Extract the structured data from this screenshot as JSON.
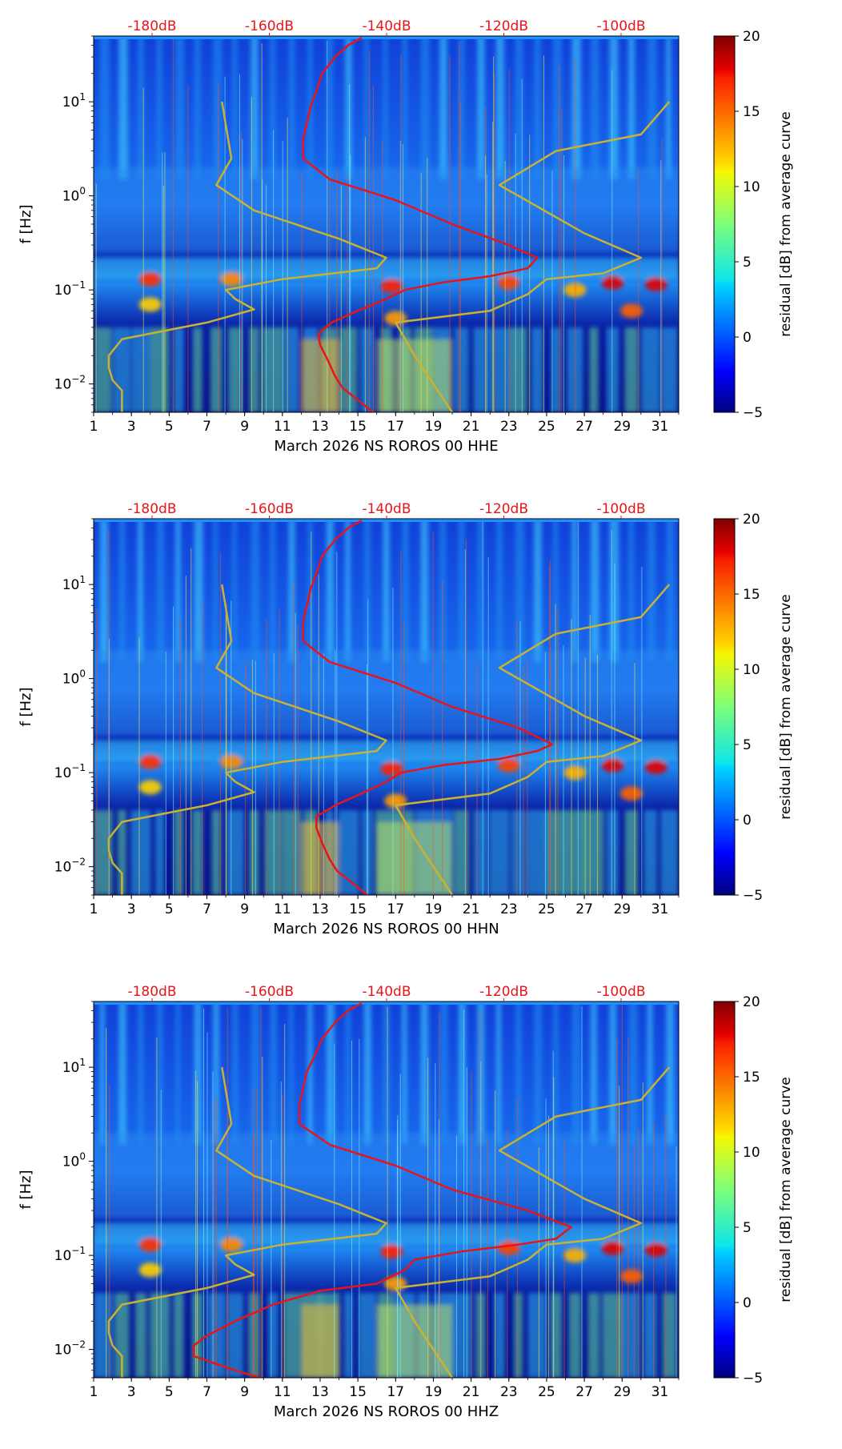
{
  "chart_data": [
    {
      "type": "heatmap",
      "xlabel": "March 2026 NS ROROS 00 HHE",
      "ylabel": "f [Hz]",
      "colorbar_label": "residual [dB] from average curve",
      "x_ticks": [
        "1",
        "3",
        "5",
        "7",
        "9",
        "11",
        "13",
        "15",
        "17",
        "19",
        "21",
        "23",
        "25",
        "27",
        "29",
        "31"
      ],
      "x_range": [
        1,
        32
      ],
      "y_range": [
        0.005,
        50
      ],
      "y_scale": "log",
      "y_ticks": [
        {
          "value": 0.01,
          "base": "10",
          "exp": "−2"
        },
        {
          "value": 0.1,
          "base": "10",
          "exp": "−1"
        },
        {
          "value": 1,
          "base": "10",
          "exp": "0"
        },
        {
          "value": 10,
          "base": "10",
          "exp": "1"
        }
      ],
      "top_ticks": [
        "-180dB",
        "-160dB",
        "-140dB",
        "-120dB",
        "-100dB"
      ],
      "colorbar_range": [
        -5,
        20
      ],
      "colorbar_ticks": [
        "−5",
        "0",
        "5",
        "10",
        "15",
        "20"
      ],
      "series": [
        {
          "name": "average PSD curve",
          "color": "#e8141a",
          "points": [
            [
              15.8,
              0.005
            ],
            [
              14.9,
              0.007
            ],
            [
              14.2,
              0.009
            ],
            [
              13.8,
              0.012
            ],
            [
              13.4,
              0.018
            ],
            [
              13.0,
              0.026
            ],
            [
              12.9,
              0.034
            ],
            [
              13.6,
              0.045
            ],
            [
              15.0,
              0.06
            ],
            [
              16.5,
              0.08
            ],
            [
              17.5,
              0.1
            ],
            [
              19.5,
              0.12
            ],
            [
              22.0,
              0.14
            ],
            [
              24.0,
              0.17
            ],
            [
              24.5,
              0.22
            ],
            [
              23.0,
              0.3
            ],
            [
              20.0,
              0.5
            ],
            [
              17.0,
              0.9
            ],
            [
              13.5,
              1.5
            ],
            [
              12.1,
              2.5
            ],
            [
              12.1,
              4.0
            ],
            [
              12.3,
              6.0
            ],
            [
              12.5,
              9.0
            ],
            [
              12.8,
              13.0
            ],
            [
              13.1,
              20.0
            ],
            [
              13.8,
              30.0
            ],
            [
              14.5,
              40.0
            ],
            [
              15.2,
              48.0
            ]
          ]
        },
        {
          "name": "noise model curve",
          "color": "#c9b233",
          "points": [
            [
              2.5,
              0.005
            ],
            [
              2.5,
              0.0085
            ],
            [
              2.0,
              0.011
            ],
            [
              1.8,
              0.015
            ],
            [
              1.8,
              0.02
            ],
            [
              2.5,
              0.03
            ],
            [
              7.0,
              0.045
            ],
            [
              9.5,
              0.062
            ],
            [
              8.5,
              0.08
            ],
            [
              8.0,
              0.1
            ],
            [
              11.0,
              0.13
            ],
            [
              16.0,
              0.17
            ],
            [
              16.5,
              0.22
            ],
            [
              14.0,
              0.35
            ],
            [
              9.5,
              0.7
            ],
            [
              7.5,
              1.3
            ],
            [
              8.3,
              2.5
            ],
            [
              7.8,
              10.0
            ]
          ]
        },
        {
          "name": "noise model curve 2",
          "color": "#c9b233",
          "points": [
            [
              20.0,
              0.005
            ],
            [
              18.0,
              0.02
            ],
            [
              17.0,
              0.045
            ],
            [
              22.0,
              0.06
            ],
            [
              24.0,
              0.09
            ],
            [
              25.0,
              0.13
            ],
            [
              28.0,
              0.15
            ],
            [
              30.0,
              0.22
            ],
            [
              27.0,
              0.4
            ],
            [
              22.5,
              1.3
            ],
            [
              25.5,
              3.0
            ],
            [
              30.0,
              4.5
            ],
            [
              31.5,
              10.0
            ]
          ]
        }
      ]
    },
    {
      "type": "heatmap",
      "xlabel": "March 2026 NS ROROS 00 HHN",
      "ylabel": "f [Hz]",
      "colorbar_label": "residual [dB] from average curve",
      "x_ticks": [
        "1",
        "3",
        "5",
        "7",
        "9",
        "11",
        "13",
        "15",
        "17",
        "19",
        "21",
        "23",
        "25",
        "27",
        "29",
        "31"
      ],
      "x_range": [
        1,
        32
      ],
      "y_range": [
        0.005,
        50
      ],
      "y_scale": "log",
      "y_ticks": [
        {
          "value": 0.01,
          "base": "10",
          "exp": "−2"
        },
        {
          "value": 0.1,
          "base": "10",
          "exp": "−1"
        },
        {
          "value": 1,
          "base": "10",
          "exp": "0"
        },
        {
          "value": 10,
          "base": "10",
          "exp": "1"
        }
      ],
      "top_ticks": [
        "-180dB",
        "-160dB",
        "-140dB",
        "-120dB",
        "-100dB"
      ],
      "colorbar_range": [
        -5,
        20
      ],
      "colorbar_ticks": [
        "−5",
        "0",
        "5",
        "10",
        "15",
        "20"
      ],
      "series": [
        {
          "name": "average PSD curve",
          "color": "#e8141a",
          "points": [
            [
              15.5,
              0.005
            ],
            [
              14.6,
              0.007
            ],
            [
              13.9,
              0.009
            ],
            [
              13.5,
              0.012
            ],
            [
              13.1,
              0.018
            ],
            [
              12.8,
              0.026
            ],
            [
              12.8,
              0.034
            ],
            [
              13.8,
              0.045
            ],
            [
              15.2,
              0.06
            ],
            [
              16.5,
              0.08
            ],
            [
              17.3,
              0.1
            ],
            [
              19.5,
              0.12
            ],
            [
              22.5,
              0.14
            ],
            [
              24.5,
              0.17
            ],
            [
              25.3,
              0.2
            ],
            [
              23.5,
              0.3
            ],
            [
              20.0,
              0.5
            ],
            [
              17.0,
              0.9
            ],
            [
              13.5,
              1.5
            ],
            [
              12.1,
              2.5
            ],
            [
              12.1,
              4.0
            ],
            [
              12.3,
              6.0
            ],
            [
              12.5,
              9.0
            ],
            [
              12.8,
              13.0
            ],
            [
              13.1,
              20.0
            ],
            [
              13.8,
              30.0
            ],
            [
              14.5,
              40.0
            ],
            [
              15.2,
              48.0
            ]
          ]
        },
        {
          "name": "noise model curve",
          "color": "#c9b233",
          "points": [
            [
              2.5,
              0.005
            ],
            [
              2.5,
              0.0085
            ],
            [
              2.0,
              0.011
            ],
            [
              1.8,
              0.015
            ],
            [
              1.8,
              0.02
            ],
            [
              2.5,
              0.03
            ],
            [
              7.0,
              0.045
            ],
            [
              9.5,
              0.062
            ],
            [
              8.5,
              0.08
            ],
            [
              8.0,
              0.1
            ],
            [
              11.0,
              0.13
            ],
            [
              16.0,
              0.17
            ],
            [
              16.5,
              0.22
            ],
            [
              14.0,
              0.35
            ],
            [
              9.5,
              0.7
            ],
            [
              7.5,
              1.3
            ],
            [
              8.3,
              2.5
            ],
            [
              7.8,
              10.0
            ]
          ]
        },
        {
          "name": "noise model curve 2",
          "color": "#c9b233",
          "points": [
            [
              20.0,
              0.005
            ],
            [
              18.0,
              0.02
            ],
            [
              17.0,
              0.045
            ],
            [
              22.0,
              0.06
            ],
            [
              24.0,
              0.09
            ],
            [
              25.0,
              0.13
            ],
            [
              28.0,
              0.15
            ],
            [
              30.0,
              0.22
            ],
            [
              27.0,
              0.4
            ],
            [
              22.5,
              1.3
            ],
            [
              25.5,
              3.0
            ],
            [
              30.0,
              4.5
            ],
            [
              31.5,
              10.0
            ]
          ]
        }
      ]
    },
    {
      "type": "heatmap",
      "xlabel": "March 2026 NS ROROS 00 HHZ",
      "ylabel": "f [Hz]",
      "colorbar_label": "residual [dB] from average curve",
      "x_ticks": [
        "1",
        "3",
        "5",
        "7",
        "9",
        "11",
        "13",
        "15",
        "17",
        "19",
        "21",
        "23",
        "25",
        "27",
        "29",
        "31"
      ],
      "x_range": [
        1,
        32
      ],
      "y_range": [
        0.005,
        50
      ],
      "y_scale": "log",
      "y_ticks": [
        {
          "value": 0.01,
          "base": "10",
          "exp": "−2"
        },
        {
          "value": 0.1,
          "base": "10",
          "exp": "−1"
        },
        {
          "value": 1,
          "base": "10",
          "exp": "0"
        },
        {
          "value": 10,
          "base": "10",
          "exp": "1"
        }
      ],
      "top_ticks": [
        "-180dB",
        "-160dB",
        "-140dB",
        "-120dB",
        "-100dB"
      ],
      "colorbar_range": [
        -5,
        20
      ],
      "colorbar_ticks": [
        "−5",
        "0",
        "5",
        "10",
        "15",
        "20"
      ],
      "series": [
        {
          "name": "average PSD curve",
          "color": "#e8141a",
          "points": [
            [
              9.8,
              0.005
            ],
            [
              8.5,
              0.006
            ],
            [
              7.5,
              0.007
            ],
            [
              6.3,
              0.0085
            ],
            [
              6.3,
              0.011
            ],
            [
              7.0,
              0.014
            ],
            [
              8.5,
              0.02
            ],
            [
              10.5,
              0.03
            ],
            [
              13.0,
              0.042
            ],
            [
              16.0,
              0.05
            ],
            [
              17.5,
              0.07
            ],
            [
              18.0,
              0.09
            ],
            [
              20.5,
              0.11
            ],
            [
              23.5,
              0.13
            ],
            [
              25.5,
              0.15
            ],
            [
              26.3,
              0.2
            ],
            [
              24.0,
              0.3
            ],
            [
              20.0,
              0.5
            ],
            [
              17.0,
              0.9
            ],
            [
              13.5,
              1.5
            ],
            [
              11.9,
              2.5
            ],
            [
              11.9,
              4.0
            ],
            [
              12.1,
              6.0
            ],
            [
              12.3,
              9.0
            ],
            [
              12.7,
              13.0
            ],
            [
              13.1,
              20.0
            ],
            [
              13.8,
              30.0
            ],
            [
              14.5,
              40.0
            ],
            [
              15.2,
              48.0
            ]
          ]
        },
        {
          "name": "noise model curve",
          "color": "#c9b233",
          "points": [
            [
              2.5,
              0.005
            ],
            [
              2.5,
              0.0085
            ],
            [
              2.0,
              0.011
            ],
            [
              1.8,
              0.015
            ],
            [
              1.8,
              0.02
            ],
            [
              2.5,
              0.03
            ],
            [
              7.0,
              0.045
            ],
            [
              9.5,
              0.062
            ],
            [
              8.5,
              0.08
            ],
            [
              8.0,
              0.1
            ],
            [
              11.0,
              0.13
            ],
            [
              16.0,
              0.17
            ],
            [
              16.5,
              0.22
            ],
            [
              14.0,
              0.35
            ],
            [
              9.5,
              0.7
            ],
            [
              7.5,
              1.3
            ],
            [
              8.3,
              2.5
            ],
            [
              7.8,
              10.0
            ]
          ]
        },
        {
          "name": "noise model curve 2",
          "color": "#c9b233",
          "points": [
            [
              20.0,
              0.005
            ],
            [
              18.0,
              0.02
            ],
            [
              17.0,
              0.045
            ],
            [
              22.0,
              0.06
            ],
            [
              24.0,
              0.09
            ],
            [
              25.0,
              0.13
            ],
            [
              28.0,
              0.15
            ],
            [
              30.0,
              0.22
            ],
            [
              27.0,
              0.4
            ],
            [
              22.5,
              1.3
            ],
            [
              25.5,
              3.0
            ],
            [
              30.0,
              4.5
            ],
            [
              31.5,
              10.0
            ]
          ]
        }
      ]
    }
  ]
}
